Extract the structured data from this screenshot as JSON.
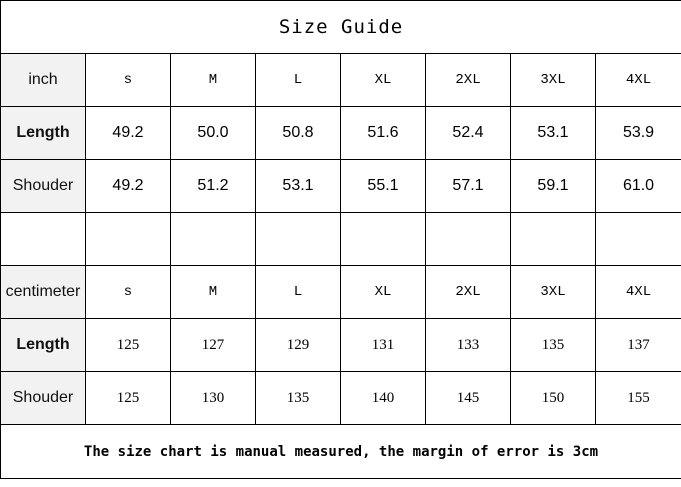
{
  "title": "Size Guide",
  "sizes": [
    "s",
    "M",
    "L",
    "XL",
    "2XL",
    "3XL",
    "4XL"
  ],
  "inch": {
    "unit_label": "inch",
    "rows": [
      {
        "label": "Length",
        "values": [
          "49.2",
          "50.0",
          "50.8",
          "51.6",
          "52.4",
          "53.1",
          "53.9"
        ]
      },
      {
        "label": "Shouder",
        "values": [
          "49.2",
          "51.2",
          "53.1",
          "55.1",
          "57.1",
          "59.1",
          "61.0"
        ]
      }
    ]
  },
  "centimeter": {
    "unit_label": "centimeter",
    "rows": [
      {
        "label": "Length",
        "values": [
          "125",
          "127",
          "129",
          "131",
          "133",
          "135",
          "137"
        ]
      },
      {
        "label": "Shouder",
        "values": [
          "125",
          "130",
          "135",
          "140",
          "145",
          "150",
          "155"
        ]
      }
    ]
  },
  "footer": "The size chart is manual measured, the margin of error is 3cm"
}
